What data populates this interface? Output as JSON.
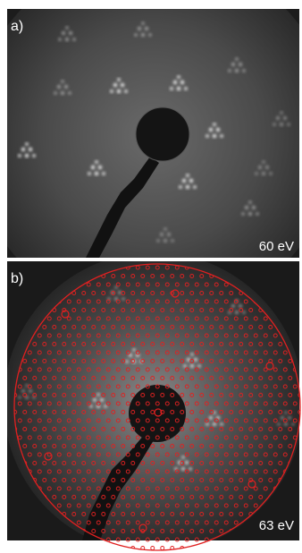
{
  "panels": [
    {
      "label": "a)",
      "energy": "60 eV"
    },
    {
      "label": "b)",
      "energy": "63 eV"
    }
  ]
}
